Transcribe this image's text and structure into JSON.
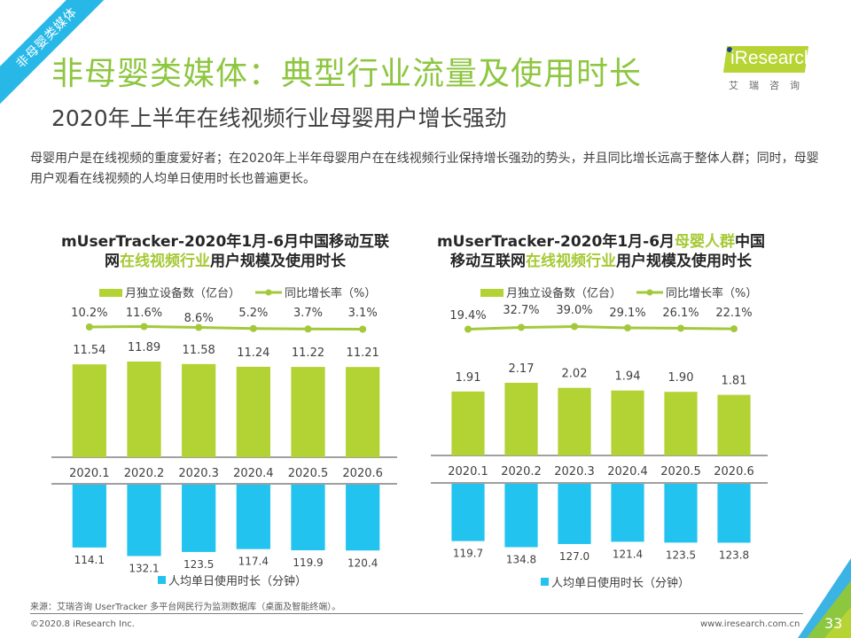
{
  "ribbon": {
    "label": "非母婴类媒体"
  },
  "header": {
    "title": "非母婴类媒体：典型行业流量及使用时长",
    "subtitle": "2020年上半年在线视频行业母婴用户增长强劲",
    "description": "母婴用户是在线视频的重度爱好者；在2020年上半年母婴用户在在线视频行业保持增长强劲的势头，并且同比增长远高于整体人群；同时，母婴用户观看在线视频的人均单日使用时长也普遍更长。"
  },
  "logo": {
    "brand": "Research",
    "cn": "艾瑞咨询"
  },
  "colors": {
    "green": "#b3d234",
    "line_green": "#a3c93a",
    "blue": "#22c3ef",
    "title_green": "#8dc63f",
    "ribbon_blue": "#28b8e8"
  },
  "charts_titles": [
    {
      "prefix": "mUserTracker-2020年1月-6月中国移动互联",
      "line2_pre": "网",
      "highlight": "在线视频行业",
      "suffix": "用户规模及使用时长"
    },
    {
      "prefix": "mUserTracker-2020年1月-6月",
      "highlight1": "母婴人群",
      "mid": "中国",
      "line2_pre": "移动互联网",
      "highlight": "在线视频行业",
      "suffix": "用户规模及使用时长"
    }
  ],
  "chart_data": [
    {
      "type": "bar",
      "title": "mUserTracker-2020年1月-6月中国移动互联网在线视频行业用户规模及使用时长",
      "categories": [
        "2020.1",
        "2020.2",
        "2020.3",
        "2020.4",
        "2020.5",
        "2020.6"
      ],
      "series": [
        {
          "name": "月独立设备数（亿台）",
          "type": "bar",
          "values": [
            11.54,
            11.89,
            11.58,
            11.24,
            11.22,
            11.21
          ],
          "labels": [
            "11.54",
            "11.89",
            "11.58",
            "11.24",
            "11.22",
            "11.21"
          ]
        },
        {
          "name": "同比增长率（%）",
          "type": "line",
          "values": [
            10.2,
            11.6,
            8.6,
            5.2,
            3.7,
            3.1
          ],
          "labels": [
            "10.2%",
            "11.6%",
            "8.6%",
            "5.2%",
            "3.7%",
            "3.1%"
          ]
        },
        {
          "name": "人均单日使用时长（分钟）",
          "type": "bar-down",
          "values": [
            114.1,
            132.1,
            123.5,
            117.4,
            119.9,
            120.4
          ],
          "labels": [
            "114.1",
            "132.1",
            "123.5",
            "117.4",
            "119.9",
            "120.4"
          ]
        }
      ],
      "legend": {
        "top": [
          "月独立设备数（亿台）",
          "同比增长率（%）"
        ],
        "bottom": [
          "人均单日使用时长（分钟）"
        ]
      }
    },
    {
      "type": "bar",
      "title": "mUserTracker-2020年1月-6月母婴人群中国移动互联网在线视频行业用户规模及使用时长",
      "categories": [
        "2020.1",
        "2020.2",
        "2020.3",
        "2020.4",
        "2020.5",
        "2020.6"
      ],
      "series": [
        {
          "name": "月独立设备数（亿台）",
          "type": "bar",
          "values": [
            1.91,
            2.17,
            2.02,
            1.94,
            1.9,
            1.81
          ],
          "labels": [
            "1.91",
            "2.17",
            "2.02",
            "1.94",
            "1.90",
            "1.81"
          ]
        },
        {
          "name": "同比增长率（%）",
          "type": "line",
          "values": [
            19.4,
            32.7,
            39.0,
            29.1,
            26.1,
            22.1
          ],
          "labels": [
            "19.4%",
            "32.7%",
            "39.0%",
            "29.1%",
            "26.1%",
            "22.1%"
          ]
        },
        {
          "name": "人均单日使用时长（分钟）",
          "type": "bar-down",
          "values": [
            119.7,
            134.8,
            127.0,
            121.4,
            123.5,
            123.8
          ],
          "labels": [
            "119.7",
            "134.8",
            "127.0",
            "121.4",
            "123.5",
            "123.8"
          ]
        }
      ],
      "legend": {
        "top": [
          "月独立设备数（亿台）",
          "同比增长率（%）"
        ],
        "bottom": [
          "人均单日使用时长（分钟）"
        ]
      }
    }
  ],
  "footer": {
    "source": "来源：艾瑞咨询 UserTracker 多平台网民行为监测数据库（桌面及智能终端）。",
    "copyright": "©2020.8 iResearch Inc.",
    "url": "www.iresearch.com.cn",
    "page": "33"
  }
}
